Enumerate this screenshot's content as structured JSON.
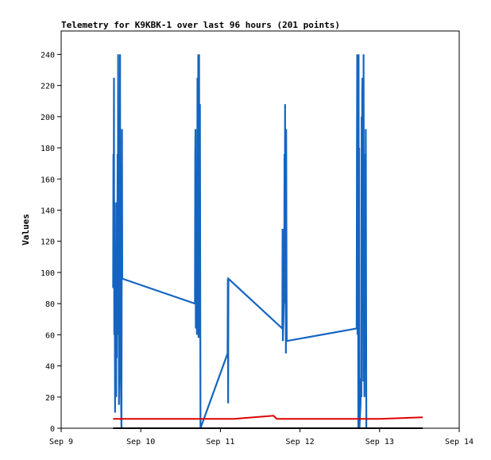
{
  "chart_data": {
    "type": "line",
    "title": "Telemetry for K9KBK-1 over last 96 hours (201 points)",
    "ylabel": "Values",
    "xlabel": "",
    "x_ticks": [
      "Sep 9",
      "Sep 10",
      "Sep 11",
      "Sep 12",
      "Sep 13",
      "Sep 14"
    ],
    "ylim": [
      0,
      255
    ],
    "y_ticks": [
      0,
      20,
      40,
      60,
      80,
      100,
      120,
      140,
      160,
      180,
      200,
      220,
      240
    ],
    "grid": false,
    "legend": "none",
    "series": [
      {
        "color": "#1565c0",
        "points": [
          [
            "Sep 09 15:40",
            90
          ],
          [
            "Sep 09 15:45",
            176
          ],
          [
            "Sep 09 15:50",
            112
          ],
          [
            "Sep 09 15:55",
            225
          ],
          [
            "Sep 09 16:00",
            60
          ],
          [
            "Sep 09 16:05",
            145
          ],
          [
            "Sep 09 16:10",
            72
          ],
          [
            "Sep 09 16:15",
            10
          ],
          [
            "Sep 09 16:20",
            65
          ],
          [
            "Sep 09 16:25",
            30
          ],
          [
            "Sep 09 16:30",
            98
          ],
          [
            "Sep 09 16:35",
            20
          ],
          [
            "Sep 09 16:40",
            145
          ],
          [
            "Sep 09 16:45",
            45
          ],
          [
            "Sep 09 16:50",
            132
          ],
          [
            "Sep 09 16:55",
            100
          ],
          [
            "Sep 09 17:00",
            176
          ],
          [
            "Sep 09 17:05",
            60
          ],
          [
            "Sep 09 17:10",
            240
          ],
          [
            "Sep 09 17:15",
            95
          ],
          [
            "Sep 09 17:20",
            120
          ],
          [
            "Sep 09 17:25",
            15
          ],
          [
            "Sep 09 17:30",
            40
          ],
          [
            "Sep 09 17:35",
            200
          ],
          [
            "Sep 09 17:40",
            120
          ],
          [
            "Sep 09 17:45",
            240
          ],
          [
            "Sep 09 17:50",
            60
          ],
          [
            "Sep 09 18:10",
            0
          ],
          [
            "Sep 09 18:15",
            98
          ],
          [
            "Sep 09 18:20",
            192
          ],
          [
            "Sep 09 18:25",
            96
          ],
          [
            "Sep 10 16:20",
            80
          ],
          [
            "Sep 10 16:25",
            176
          ],
          [
            "Sep 10 16:30",
            192
          ],
          [
            "Sep 10 16:35",
            64
          ],
          [
            "Sep 10 16:40",
            128
          ],
          [
            "Sep 10 16:45",
            100
          ],
          [
            "Sep 10 16:50",
            112
          ],
          [
            "Sep 10 16:55",
            60
          ],
          [
            "Sep 10 17:00",
            88
          ],
          [
            "Sep 10 17:05",
            225
          ],
          [
            "Sep 10 17:10",
            105
          ],
          [
            "Sep 10 17:15",
            168
          ],
          [
            "Sep 10 17:20",
            240
          ],
          [
            "Sep 10 17:25",
            58
          ],
          [
            "Sep 10 17:30",
            180
          ],
          [
            "Sep 10 17:35",
            240
          ],
          [
            "Sep 10 17:40",
            60
          ],
          [
            "Sep 10 17:45",
            120
          ],
          [
            "Sep 10 17:50",
            208
          ],
          [
            "Sep 10 17:55",
            104
          ],
          [
            "Sep 10 18:00",
            0
          ],
          [
            "Sep 11 02:10",
            48
          ],
          [
            "Sep 11 02:15",
            96
          ],
          [
            "Sep 11 02:20",
            16
          ],
          [
            "Sep 11 02:25",
            96
          ],
          [
            "Sep 11 18:40",
            64
          ],
          [
            "Sep 11 18:45",
            128
          ],
          [
            "Sep 11 18:50",
            56
          ],
          [
            "Sep 11 19:15",
            90
          ],
          [
            "Sep 11 19:20",
            176
          ],
          [
            "Sep 11 19:25",
            80
          ],
          [
            "Sep 11 19:30",
            208
          ],
          [
            "Sep 11 19:35",
            120
          ],
          [
            "Sep 11 19:40",
            145
          ],
          [
            "Sep 11 19:45",
            48
          ],
          [
            "Sep 11 19:50",
            192
          ],
          [
            "Sep 11 19:55",
            112
          ],
          [
            "Sep 11 20:00",
            56
          ],
          [
            "Sep 12 17:05",
            64
          ],
          [
            "Sep 12 17:10",
            180
          ],
          [
            "Sep 12 17:15",
            240
          ],
          [
            "Sep 12 17:20",
            60
          ],
          [
            "Sep 12 17:25",
            120
          ],
          [
            "Sep 12 17:30",
            176
          ],
          [
            "Sep 12 17:35",
            0
          ],
          [
            "Sep 12 17:40",
            240
          ],
          [
            "Sep 12 17:45",
            50
          ],
          [
            "Sep 12 17:50",
            180
          ],
          [
            "Sep 12 17:55",
            0
          ],
          [
            "Sep 12 18:15",
            15
          ],
          [
            "Sep 12 18:20",
            24
          ],
          [
            "Sep 12 18:25",
            32
          ],
          [
            "Sep 12 18:30",
            20
          ],
          [
            "Sep 12 18:35",
            200
          ],
          [
            "Sep 12 18:40",
            120
          ],
          [
            "Sep 12 18:45",
            215
          ],
          [
            "Sep 12 18:50",
            225
          ],
          [
            "Sep 12 18:55",
            88
          ],
          [
            "Sep 12 19:00",
            176
          ],
          [
            "Sep 12 19:05",
            30
          ],
          [
            "Sep 12 19:10",
            240
          ],
          [
            "Sep 12 19:15",
            120
          ],
          [
            "Sep 12 19:20",
            60
          ],
          [
            "Sep 12 19:25",
            20
          ],
          [
            "Sep 12 19:30",
            96
          ],
          [
            "Sep 12 19:35",
            148
          ],
          [
            "Sep 12 19:40",
            176
          ],
          [
            "Sep 12 19:45",
            48
          ],
          [
            "Sep 12 19:50",
            192
          ],
          [
            "Sep 12 19:55",
            96
          ],
          [
            "Sep 12 20:00",
            0
          ]
        ]
      },
      {
        "color": "#e00000",
        "points": [
          [
            "Sep 09 15:40",
            6
          ],
          [
            "Sep 09 16:30",
            6
          ],
          [
            "Sep 10 20:00",
            6
          ],
          [
            "Sep 11 04:00",
            6
          ],
          [
            "Sep 11 16:00",
            8
          ],
          [
            "Sep 11 17:00",
            6
          ],
          [
            "Sep 13 00:00",
            6
          ],
          [
            "Sep 13 13:00",
            7
          ]
        ]
      },
      {
        "color": "#000000",
        "points": [
          [
            "Sep 09 15:40",
            0
          ],
          [
            "Sep 13 13:00",
            0
          ]
        ]
      }
    ]
  }
}
